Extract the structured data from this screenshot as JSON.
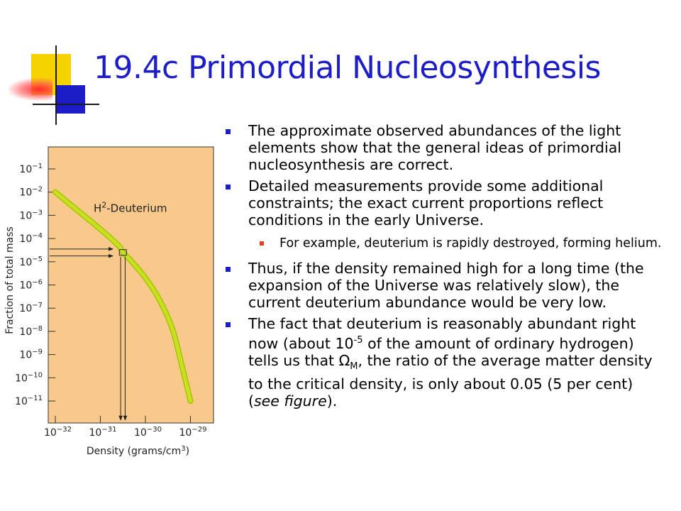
{
  "colors": {
    "title": "#1c1cc8",
    "bullet_main": "#1c1cc8",
    "bullet_sub": "#e0401c",
    "chart_background": "#f8c98a",
    "curve_fill": "#c8e024",
    "curve_edge": "#a8c400"
  },
  "slide": {
    "title": "19.4c Primordial Nucleosynthesis"
  },
  "bullets": {
    "b1": "The approximate observed abundances of the light elements show that the general ideas of primordial nucleosynthesis are correct.",
    "b2": "Detailed measurements provide some additional constraints; the exact current proportions reflect conditions in the early Universe.",
    "b2_sub": "For example, deuterium is rapidly destroyed, forming helium.",
    "b3": "Thus, if the density remained high for a long time (the expansion of the Universe was relatively slow), the current deuterium abundance would be very low.",
    "b4_part1": "The fact that deuterium is reasonably abundant right now (about 10",
    "b4_exp": "-5",
    "b4_part2": " of the amount of ordinary hydrogen) tells us that ",
    "b4_omega": "Ω",
    "b4_omega_sub": "M",
    "b4_part3": ", the ratio of the average matter density to the critical density, is only about 0.05 (5 per cent) (",
    "b4_italic": "see figure",
    "b4_end": ")."
  },
  "chart_data": {
    "type": "line",
    "xscale": "log",
    "yscale": "log",
    "xlim": [
      1e-32,
      1e-29
    ],
    "ylim": [
      1e-11,
      0.1
    ],
    "x_ticks": [
      -32,
      -31,
      -30,
      -29
    ],
    "y_ticks": [
      -1,
      -2,
      -3,
      -4,
      -5,
      -6,
      -7,
      -8,
      -9,
      -10,
      -11
    ],
    "xlabel": "Density (grams/cm",
    "xlabel_sup": "3",
    "xlabel_end": ")",
    "ylabel": "Fraction of total mass",
    "series": [
      {
        "name": "H2-Deuterium",
        "x_log10": [
          -32.0,
          -31.5,
          -31.0,
          -30.6,
          -30.5,
          -30.3,
          -30.0,
          -29.7,
          -29.4,
          -29.2,
          -29.0
        ],
        "y_log10": [
          -2.0,
          -2.8,
          -3.6,
          -4.3,
          -4.6,
          -5.0,
          -5.7,
          -6.6,
          -7.9,
          -9.4,
          -11.0
        ]
      }
    ],
    "annotation": {
      "label_main": "H",
      "label_sup": "2",
      "label_rest": "-Deuterium"
    },
    "highlight": {
      "x_log10": -30.5,
      "y_log10": -4.6,
      "x_arrow_log10": [
        -30.55,
        -30.45
      ],
      "y_arrow_log10": [
        -4.45,
        -4.75
      ]
    },
    "grid": false,
    "legend": "none"
  }
}
